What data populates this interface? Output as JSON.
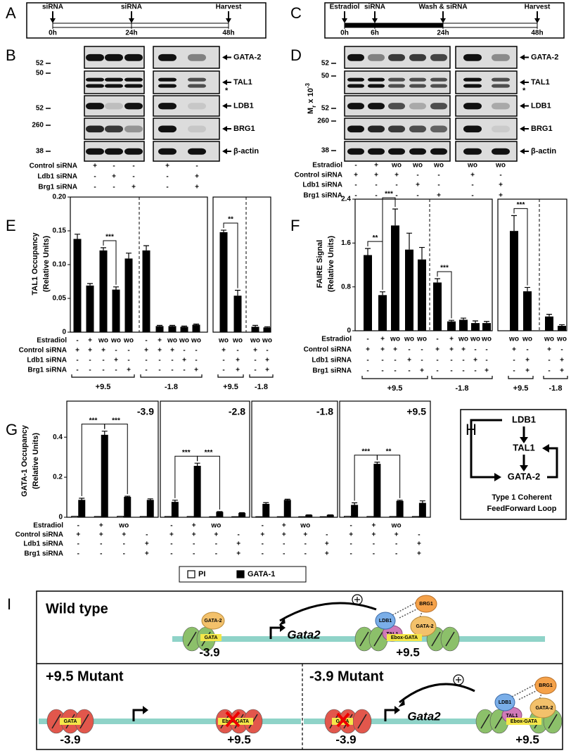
{
  "panel_letters": [
    "A",
    "B",
    "C",
    "D",
    "E",
    "F",
    "G",
    "H",
    "I"
  ],
  "timeline_a": {
    "events": [
      {
        "label": "siRNA",
        "time": "0h"
      },
      {
        "label": "siRNA",
        "time": "24h"
      },
      {
        "label": "Harvest",
        "time": "48h"
      }
    ]
  },
  "timeline_c": {
    "events": [
      {
        "label": "Estradiol",
        "time": "0h"
      },
      {
        "label": "siRNA",
        "time": "6h"
      },
      {
        "label": "Wash & siRNA",
        "time": "24h"
      },
      {
        "label": "Harvest",
        "time": "48h"
      }
    ]
  },
  "blot_b": {
    "mw": [
      "52",
      "50",
      "52",
      "260",
      "38"
    ],
    "proteins": [
      "GATA-2",
      "TAL1",
      "LDB1",
      "BRG1",
      "β-actin"
    ],
    "star": "*",
    "rows": [
      {
        "name": "Control siRNA",
        "lanes": [
          "+",
          "-",
          "-",
          "+",
          "-"
        ]
      },
      {
        "name": "Ldb1 siRNA",
        "lanes": [
          "-",
          "+",
          "-",
          "-",
          "+"
        ]
      },
      {
        "name": "Brg1 siRNA",
        "lanes": [
          "-",
          "-",
          "+",
          "-",
          "+"
        ]
      }
    ]
  },
  "blot_d": {
    "mr_label": {
      "m": "M",
      "sub": "r",
      "mid": " x 10",
      "sup": "-3"
    },
    "mw": [
      "52",
      "50",
      "52",
      "260",
      "38"
    ],
    "proteins": [
      "GATA-2",
      "TAL1",
      "LDB1",
      "BRG1",
      "β-actin"
    ],
    "star": "*",
    "rows": [
      {
        "name": "Estradiol",
        "lanes": [
          "-",
          "+",
          "wo",
          "wo",
          "wo",
          "wo",
          "wo"
        ]
      },
      {
        "name": "Control siRNA",
        "lanes": [
          "+",
          "+",
          "+",
          "-",
          "-",
          "+",
          "-"
        ]
      },
      {
        "name": "Ldb1 siRNA",
        "lanes": [
          "-",
          "-",
          "-",
          "+",
          "-",
          "-",
          "+"
        ]
      },
      {
        "name": "Brg1 siRNA",
        "lanes": [
          "-",
          "-",
          "-",
          "-",
          "+",
          "-",
          "+"
        ]
      }
    ]
  },
  "chart_data": [
    {
      "type": "bar",
      "ylabel": [
        "TAL1 Occupancy",
        "(Relative Units)"
      ],
      "ylim": [
        0,
        0.2
      ],
      "yticks": [
        0,
        0.05,
        {
          "value": 0.1,
          "label": "0.10"
        },
        0.15,
        {
          "value": 0.2,
          "label": "0.20"
        }
      ],
      "color": "#000000",
      "row_names": [
        "Estradiol",
        "Control siRNA",
        "Ldb1 siRNA",
        "Brg1 siRNA"
      ],
      "panels": [
        {
          "groups": [
            {
              "label": "+9.5",
              "values": [
                0.138,
                0.069,
                0.121,
                0.063,
                0.109
              ],
              "errors": [
                0.007,
                0.003,
                0.004,
                0.004,
                0.008
              ],
              "conditions": [
                [
                  "-",
                  "+",
                  "wo",
                  "wo",
                  "wo"
                ],
                [
                  "+",
                  "+",
                  "+",
                  "-",
                  "-"
                ],
                [
                  "-",
                  "-",
                  "-",
                  "+",
                  "-"
                ],
                [
                  "-",
                  "-",
                  "-",
                  "-",
                  "+"
                ]
              ],
              "significance": [
                "***"
              ]
            },
            {
              "label": "-1.8",
              "values": [
                0.121,
                0.009,
                0.009,
                0.008,
                0.011
              ],
              "errors": [
                0.007,
                0.001,
                0.001,
                0.001,
                0.001
              ],
              "conditions": [
                [
                  "-",
                  "+",
                  "wo",
                  "wo",
                  "wo"
                ],
                [
                  "+",
                  "+",
                  "+",
                  "-",
                  "-"
                ],
                [
                  "-",
                  "-",
                  "-",
                  "+",
                  "-"
                ],
                [
                  "-",
                  "-",
                  "-",
                  "-",
                  "+"
                ]
              ]
            }
          ]
        },
        {
          "groups": [
            {
              "label": "+9.5",
              "values": [
                0.148,
                0.054
              ],
              "errors": [
                0.003,
                0.008
              ],
              "conditions": [
                [
                  "wo",
                  "wo"
                ],
                [
                  "+",
                  "-"
                ],
                [
                  "-",
                  "+"
                ],
                [
                  "-",
                  "+"
                ]
              ],
              "significance": [
                "**"
              ]
            },
            {
              "label": "-1.8",
              "values": [
                0.008,
                0.007
              ],
              "errors": [
                0.002,
                0.001
              ],
              "conditions": [
                [
                  "wo",
                  "wo"
                ],
                [
                  "+",
                  "-"
                ],
                [
                  "-",
                  "+"
                ],
                [
                  "-",
                  "+"
                ]
              ]
            }
          ]
        }
      ]
    },
    {
      "type": "bar",
      "ylabel": [
        "FAIRE Signal",
        "(Relative Units)"
      ],
      "ylim": [
        0,
        2.4
      ],
      "yticks": [
        0,
        0.8,
        1.6,
        2.4
      ],
      "color": "#000000",
      "row_names": [
        "Estradiol",
        "Control siRNA",
        "Ldb1 siRNA",
        "Brg1 siRNA"
      ],
      "panels": [
        {
          "groups": [
            {
              "label": "+9.5",
              "values": [
                1.38,
                0.65,
                1.92,
                1.48,
                1.3
              ],
              "errors": [
                0.12,
                0.06,
                0.3,
                0.3,
                0.22
              ],
              "conditions": [
                [
                  "-",
                  "+",
                  "wo",
                  "wo",
                  "wo"
                ],
                [
                  "+",
                  "+",
                  "+",
                  "-",
                  "-"
                ],
                [
                  "-",
                  "-",
                  "-",
                  "+",
                  "-"
                ],
                [
                  "-",
                  "-",
                  "-",
                  "-",
                  "+"
                ]
              ],
              "significance": [
                "**",
                "***"
              ]
            },
            {
              "label": "-1.8",
              "values": [
                0.88,
                0.17,
                0.2,
                0.14,
                0.14
              ],
              "errors": [
                0.07,
                0.02,
                0.03,
                0.04,
                0.03
              ],
              "conditions": [
                [
                  "-",
                  "+",
                  "wo",
                  "wo",
                  "wo"
                ],
                [
                  "+",
                  "+",
                  "+",
                  "-",
                  "-"
                ],
                [
                  "-",
                  "-",
                  "-",
                  "+",
                  "-"
                ],
                [
                  "-",
                  "-",
                  "-",
                  "-",
                  "+"
                ]
              ],
              "significance": [
                "***"
              ]
            }
          ]
        },
        {
          "groups": [
            {
              "label": "+9.5",
              "values": [
                1.82,
                0.72
              ],
              "errors": [
                0.28,
                0.07
              ],
              "conditions": [
                [
                  "wo",
                  "wo"
                ],
                [
                  "+",
                  "-"
                ],
                [
                  "-",
                  "+"
                ],
                [
                  "-",
                  "+"
                ]
              ],
              "significance": [
                "***"
              ]
            },
            {
              "label": "-1.8",
              "values": [
                0.26,
                0.09
              ],
              "errors": [
                0.04,
                0.02
              ],
              "conditions": [
                [
                  "wo",
                  "wo"
                ],
                [
                  "+",
                  "-"
                ],
                [
                  "-",
                  "+"
                ],
                [
                  "-",
                  "+"
                ]
              ]
            }
          ]
        }
      ]
    },
    {
      "type": "grouped-bar",
      "ylabel": [
        "GATA-1 Occupancy",
        "(Relative Units)"
      ],
      "ylim": [
        0,
        0.58
      ],
      "yticks": [
        0,
        0.2,
        0.4
      ],
      "series": [
        {
          "name": "PI",
          "color": "#ffffff"
        },
        {
          "name": "GATA-1",
          "color": "#000000"
        }
      ],
      "row_names": [
        "Estradiol",
        "Control siRNA",
        "Ldb1 siRNA",
        "Brg1 siRNA"
      ],
      "conditions": [
        [
          "-",
          "+",
          "wo",
          null
        ],
        [
          "+",
          "+",
          "+",
          "-"
        ],
        [
          "-",
          "-",
          "-",
          "+"
        ],
        [
          "-",
          "-",
          "-",
          "+"
        ]
      ],
      "panels": [
        {
          "title": "-3.9",
          "series": [
            {
              "values": [
                0.005,
                0.004,
                0.005,
                0.004
              ]
            },
            {
              "values": [
                0.085,
                0.41,
                0.1,
                0.085
              ],
              "errors": [
                0.01,
                0.02,
                0.005,
                0.007
              ]
            }
          ],
          "significance": [
            "***",
            "***"
          ]
        },
        {
          "title": "-2.8",
          "series": [
            {
              "values": [
                0.004,
                0.004,
                0.003,
                0.003
              ]
            },
            {
              "values": [
                0.075,
                0.255,
                0.025,
                0.02
              ],
              "errors": [
                0.01,
                0.015,
                0.003,
                0.003
              ]
            }
          ],
          "significance": [
            "***",
            "***"
          ]
        },
        {
          "title": "-1.8",
          "series": [
            {
              "values": [
                0.003,
                0.003,
                0.003,
                0.003
              ]
            },
            {
              "values": [
                0.065,
                0.085,
                0.01,
                0.01
              ],
              "errors": [
                0.008,
                0.005,
                0.002,
                0.002
              ]
            }
          ]
        },
        {
          "title": "+9.5",
          "series": [
            {
              "values": [
                0.005,
                0.004,
                0.004,
                0.004
              ]
            },
            {
              "values": [
                0.06,
                0.265,
                0.08,
                0.07
              ],
              "errors": [
                0.012,
                0.01,
                0.005,
                0.012
              ]
            }
          ],
          "significance": [
            "***",
            "**"
          ]
        }
      ]
    }
  ],
  "diagram_h": {
    "nodes": [
      "LDB1",
      "TAL1",
      "GATA-2"
    ],
    "caption": [
      "Type 1 Coherent",
      "FeedForward Loop"
    ]
  },
  "diagram_i": {
    "wild_type": {
      "title": "Wild type",
      "gene": "Gata2",
      "left_site": {
        "factor": "GATA-2",
        "motif": "GATA",
        "position": "-3.9"
      },
      "right_site": {
        "factors": [
          "LDB1",
          "TAL1",
          "GATA-2",
          "BRG1"
        ],
        "motif": "Ebox-GATA",
        "position": "+9.5"
      }
    },
    "mutant_95": {
      "title": "+9.5 Mutant",
      "left_motif": "GATA",
      "right_motif": "Ebox-GATA",
      "left_position": "-3.9",
      "right_position": "+9.5"
    },
    "mutant_39": {
      "title": "-3.9 Mutant",
      "gene": "Gata2",
      "left_motif": "GATA",
      "right_site": {
        "factors": [
          "LDB1",
          "TAL1",
          "GATA-2",
          "BRG1"
        ],
        "motif": "Ebox-GATA"
      },
      "left_position": "-3.9",
      "right_position": "+9.5"
    }
  }
}
